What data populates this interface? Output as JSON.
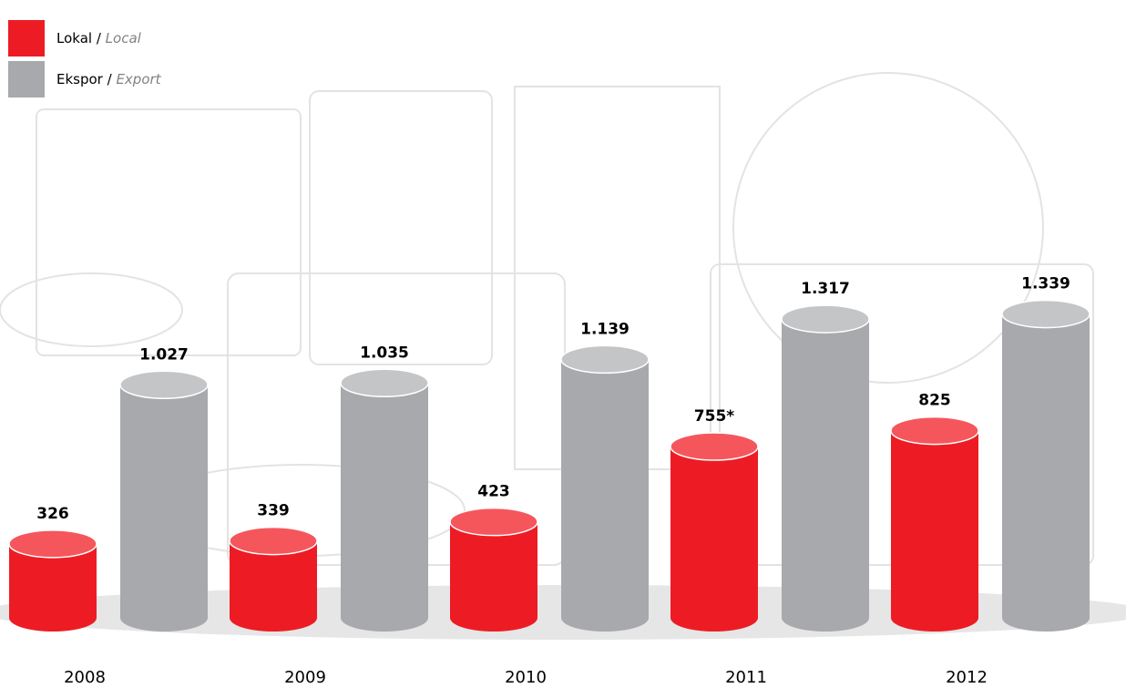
{
  "chart_data": {
    "type": "bar",
    "categories": [
      "2008",
      "2009",
      "2010",
      "2011",
      "2012"
    ],
    "series": [
      {
        "name": "Lokal / Local",
        "color": "#ed1c24",
        "values": [
          326,
          339,
          423,
          755,
          825
        ],
        "value_labels": [
          "326",
          "339",
          "423",
          "755*",
          "825"
        ]
      },
      {
        "name": "Ekspor / Export",
        "color": "#a7a9ac",
        "values": [
          1027,
          1035,
          1139,
          1317,
          1339
        ],
        "value_labels": [
          "1.027",
          "1.035",
          "1.139",
          "1.317",
          "1.339"
        ]
      }
    ]
  }
}
